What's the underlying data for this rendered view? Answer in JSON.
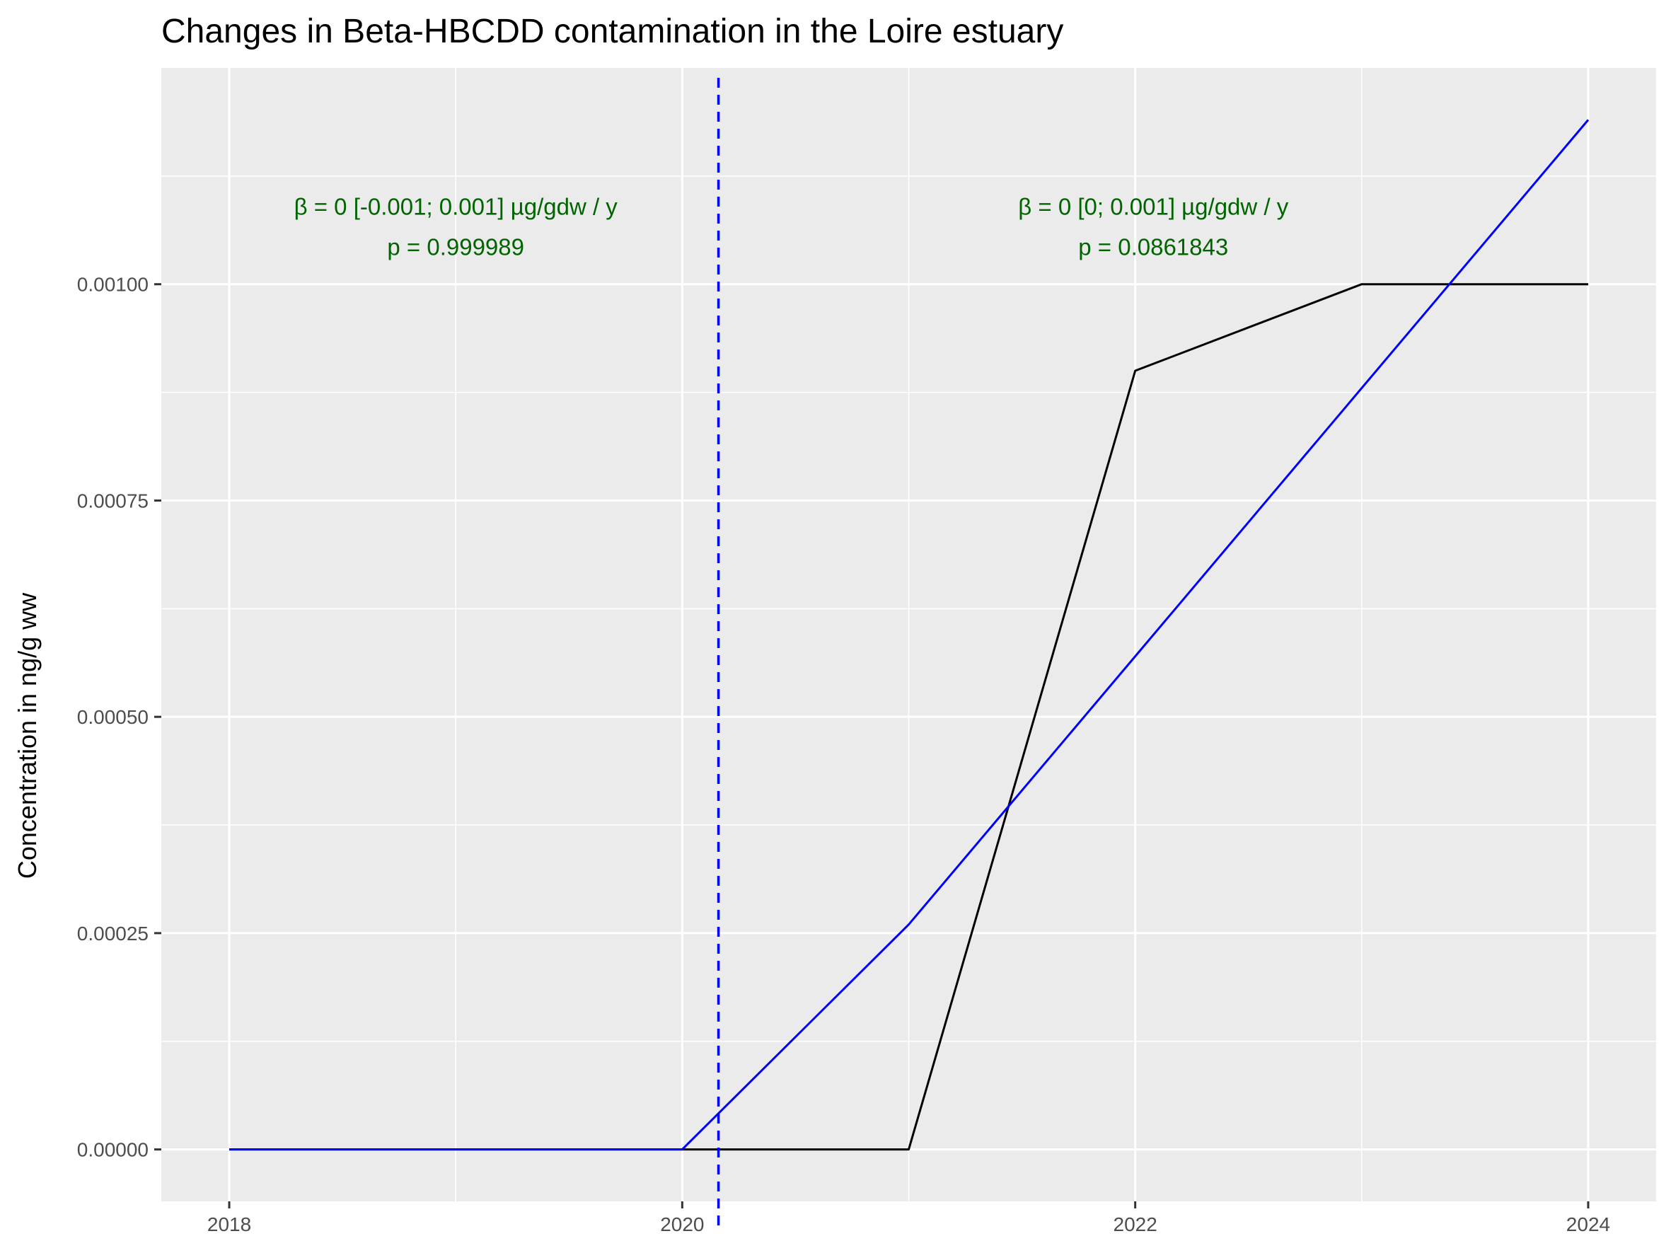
{
  "chart_data": {
    "type": "line",
    "title": "Changes in Beta-HBCDD contamination in the Loire estuary",
    "xlabel": "",
    "ylabel": "Concentration in ng/g ww",
    "xlim": [
      2017.7,
      2024.3
    ],
    "ylim": [
      -6e-05,
      0.00125
    ],
    "x_ticks": [
      2018,
      2020,
      2022,
      2024
    ],
    "x_tick_labels": [
      "2018",
      "2020",
      "2022",
      "2024"
    ],
    "x_minor_ticks": [
      2019,
      2021,
      2023
    ],
    "y_ticks": [
      0,
      0.00025,
      0.0005,
      0.00075,
      0.001
    ],
    "y_tick_labels": [
      "0.00000",
      "0.00025",
      "0.00050",
      "0.00075",
      "0.00100"
    ],
    "y_minor_ticks": [
      0.000125,
      0.000375,
      0.000625,
      0.000875,
      0.001125
    ],
    "grid": true,
    "colors": {
      "panel_background": "#ebebeb",
      "grid": "#ffffff",
      "observed_line": "#000000",
      "trend_line": "#0000ff",
      "breakpoint_line": "#0000ff",
      "annotation": "#006400"
    },
    "series": [
      {
        "color": "#000000",
        "x": [
          2018,
          2019,
          2020,
          2021,
          2022,
          2023,
          2024
        ],
        "y": [
          0,
          0,
          0,
          0,
          0.0009,
          0.001,
          0.001
        ]
      },
      {
        "color": "#0000ff",
        "x": [
          2018,
          2019,
          2020,
          2021,
          2022,
          2023,
          2024
        ],
        "y": [
          0,
          0,
          0,
          0.00026,
          0.00057,
          0.00088,
          0.00119
        ]
      }
    ],
    "vline": {
      "x": 2020.16,
      "color": "#0000ff",
      "style": "dashed"
    },
    "annotations": [
      {
        "line1": "β = 0 [-0.001; 0.001] µg/gdw / y",
        "line2": "p = 0.999989",
        "x": 2019.0,
        "y": 0.00109
      },
      {
        "line1": "β = 0 [0; 0.001] µg/gdw / y",
        "line2": "p = 0.0861843",
        "x": 2022.08,
        "y": 0.00109
      }
    ]
  }
}
